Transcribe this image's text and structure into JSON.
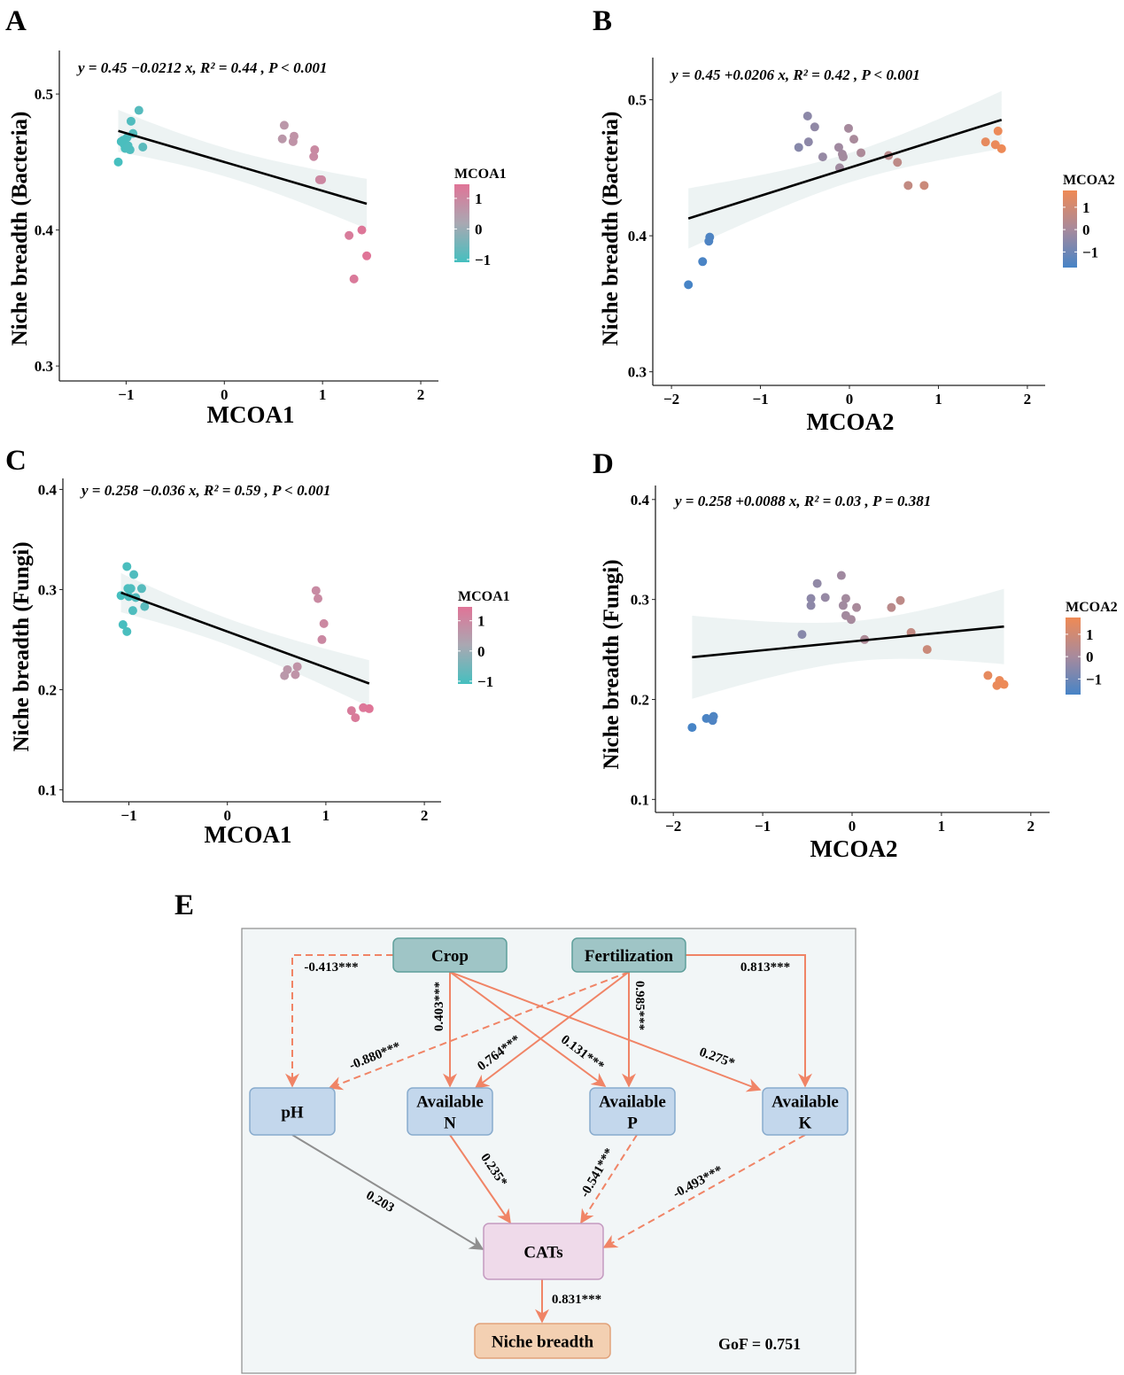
{
  "panel_letters": [
    "A",
    "B",
    "C",
    "D",
    "E"
  ],
  "chart_data": [
    {
      "type": "scatter",
      "equation": "y = 0.45 −0.0212  x, R² = 0.44 , P < 0.001",
      "intercept": 0.45,
      "slope": -0.0212,
      "xlabel": "MCOA1",
      "ylabel": "Niche breadth (Bacteria)",
      "xlim": [
        -1.68,
        2.18
      ],
      "ylim": [
        0.289,
        0.532
      ],
      "xticks": [
        -1,
        0,
        1,
        2
      ],
      "xtick_labels": [
        "−1",
        "0",
        "1",
        "2"
      ],
      "yticks": [
        0.3,
        0.4,
        0.5
      ],
      "ytick_labels": [
        "0.3",
        "0.4",
        "0.5"
      ],
      "legend": {
        "title": "MCOA1",
        "ticks": [
          "1",
          "0",
          "−1"
        ],
        "tick_values": [
          1,
          0,
          -1
        ],
        "range": [
          -1.09,
          1.46
        ],
        "placement": "right"
      },
      "colors": {
        "low": "#45bfbf",
        "mid": "#a9a8b2",
        "high": "#e07497"
      },
      "points": [
        [
          -0.87,
          0.488
        ],
        [
          -0.95,
          0.48
        ],
        [
          -0.93,
          0.471
        ],
        [
          -1.05,
          0.465
        ],
        [
          -0.99,
          0.468
        ],
        [
          -1.01,
          0.46
        ],
        [
          -0.96,
          0.459
        ],
        [
          -0.83,
          0.461
        ],
        [
          -1.08,
          0.45
        ],
        [
          -1.02,
          0.463
        ],
        [
          -0.98,
          0.462
        ],
        [
          -1.03,
          0.466
        ],
        [
          0.61,
          0.477
        ],
        [
          0.59,
          0.467
        ],
        [
          0.71,
          0.469
        ],
        [
          0.7,
          0.465
        ],
        [
          0.92,
          0.459
        ],
        [
          0.91,
          0.454
        ],
        [
          0.97,
          0.437
        ],
        [
          0.99,
          0.437
        ],
        [
          1.27,
          0.396
        ],
        [
          1.4,
          0.4
        ],
        [
          1.45,
          0.381
        ],
        [
          1.32,
          0.364
        ]
      ]
    },
    {
      "type": "scatter",
      "equation": "y = 0.45 +0.0206  x, R² = 0.42 , P < 0.001",
      "intercept": 0.45,
      "slope": 0.0206,
      "xlabel": "MCOA2",
      "ylabel": "Niche breadth (Bacteria)",
      "xlim": [
        -2.21,
        2.2
      ],
      "ylim": [
        0.29,
        0.531
      ],
      "xticks": [
        -2,
        -1,
        0,
        1,
        2
      ],
      "xtick_labels": [
        "−2",
        "−1",
        "0",
        "1",
        "2"
      ],
      "yticks": [
        0.3,
        0.4,
        0.5
      ],
      "ytick_labels": [
        "0.3",
        "0.4",
        "0.5"
      ],
      "legend": {
        "title": "MCOA2",
        "ticks": [
          "1",
          "0",
          "−1"
        ],
        "tick_values": [
          1,
          0,
          -1
        ],
        "range": [
          -1.7,
          1.75
        ],
        "placement": "right"
      },
      "colors": {
        "low": "#4784c6",
        "mid": "#a88a9c",
        "high": "#ef8a55"
      },
      "points": [
        [
          -1.81,
          0.364
        ],
        [
          -1.65,
          0.381
        ],
        [
          -1.58,
          0.396
        ],
        [
          -1.57,
          0.399
        ],
        [
          -0.47,
          0.488
        ],
        [
          -0.39,
          0.48
        ],
        [
          -0.46,
          0.469
        ],
        [
          -0.57,
          0.465
        ],
        [
          -0.3,
          0.458
        ],
        [
          -0.01,
          0.479
        ],
        [
          0.05,
          0.471
        ],
        [
          -0.08,
          0.46
        ],
        [
          -0.07,
          0.458
        ],
        [
          -0.12,
          0.465
        ],
        [
          -0.11,
          0.45
        ],
        [
          0.13,
          0.461
        ],
        [
          0.44,
          0.459
        ],
        [
          0.54,
          0.454
        ],
        [
          0.66,
          0.437
        ],
        [
          0.84,
          0.437
        ],
        [
          1.53,
          0.469
        ],
        [
          1.64,
          0.467
        ],
        [
          1.67,
          0.477
        ],
        [
          1.71,
          0.464
        ]
      ]
    },
    {
      "type": "scatter",
      "equation": "y = 0.258  −0.036  x, R² = 0.59 , P < 0.001",
      "intercept": 0.258,
      "slope": -0.036,
      "xlabel": "MCOA1",
      "ylabel": "Niche breadth (Fungi)",
      "xlim": [
        -1.67,
        2.17
      ],
      "ylim": [
        0.088,
        0.411
      ],
      "xticks": [
        -1,
        0,
        1,
        2
      ],
      "xtick_labels": [
        "−1",
        "0",
        "1",
        "2"
      ],
      "yticks": [
        0.1,
        0.2,
        0.3,
        0.4
      ],
      "ytick_labels": [
        "0.1",
        "0.2",
        "0.3",
        "0.4"
      ],
      "legend": {
        "title": "MCOA1",
        "ticks": [
          "1",
          "0",
          "−1"
        ],
        "tick_values": [
          1,
          0,
          -1
        ],
        "range": [
          -1.09,
          1.46
        ],
        "placement": "right"
      },
      "colors": {
        "low": "#45bfbf",
        "mid": "#a9a8b2",
        "high": "#e07497"
      },
      "points": [
        [
          -1.02,
          0.323
        ],
        [
          -0.95,
          0.315
        ],
        [
          -1.01,
          0.301
        ],
        [
          -0.98,
          0.301
        ],
        [
          -0.87,
          0.301
        ],
        [
          -1.08,
          0.294
        ],
        [
          -1.0,
          0.293
        ],
        [
          -0.93,
          0.292
        ],
        [
          -0.84,
          0.283
        ],
        [
          -0.96,
          0.279
        ],
        [
          -1.06,
          0.265
        ],
        [
          -1.02,
          0.258
        ],
        [
          0.9,
          0.299
        ],
        [
          0.92,
          0.291
        ],
        [
          0.98,
          0.266
        ],
        [
          0.96,
          0.25
        ],
        [
          0.61,
          0.22
        ],
        [
          0.71,
          0.223
        ],
        [
          0.58,
          0.214
        ],
        [
          0.69,
          0.215
        ],
        [
          1.26,
          0.179
        ],
        [
          1.3,
          0.172
        ],
        [
          1.38,
          0.182
        ],
        [
          1.44,
          0.181
        ]
      ]
    },
    {
      "type": "scatter",
      "equation": "y = 0.258  +0.0088  x, R² = 0.03 , P = 0.381",
      "intercept": 0.258,
      "slope": 0.0088,
      "xlabel": "MCOA2",
      "ylabel": "Niche breadth (Fungi)",
      "xlim": [
        -2.2,
        2.21
      ],
      "ylim": [
        0.087,
        0.414
      ],
      "xticks": [
        -2,
        -1,
        0,
        1,
        2
      ],
      "xtick_labels": [
        "−2",
        "−1",
        "0",
        "1",
        "2"
      ],
      "yticks": [
        0.1,
        0.2,
        0.3,
        0.4
      ],
      "ytick_labels": [
        "0.1",
        "0.2",
        "0.3",
        "0.4"
      ],
      "legend": {
        "title": "MCOA2",
        "ticks": [
          "1",
          "0",
          "−1"
        ],
        "tick_values": [
          1,
          0,
          -1
        ],
        "range": [
          -1.7,
          1.75
        ],
        "placement": "right"
      },
      "colors": {
        "low": "#4784c6",
        "mid": "#a88a9c",
        "high": "#ef8a55"
      },
      "points": [
        [
          -1.79,
          0.172
        ],
        [
          -1.63,
          0.181
        ],
        [
          -1.55,
          0.183
        ],
        [
          -1.56,
          0.179
        ],
        [
          -0.56,
          0.265
        ],
        [
          -0.46,
          0.294
        ],
        [
          -0.46,
          0.301
        ],
        [
          -0.39,
          0.316
        ],
        [
          -0.3,
          0.302
        ],
        [
          -0.12,
          0.324
        ],
        [
          -0.07,
          0.301
        ],
        [
          -0.1,
          0.294
        ],
        [
          -0.07,
          0.284
        ],
        [
          -0.01,
          0.28
        ],
        [
          0.05,
          0.292
        ],
        [
          0.14,
          0.26
        ],
        [
          0.44,
          0.292
        ],
        [
          0.54,
          0.299
        ],
        [
          0.66,
          0.267
        ],
        [
          0.84,
          0.25
        ],
        [
          1.52,
          0.224
        ],
        [
          1.65,
          0.219
        ],
        [
          1.67,
          0.216
        ],
        [
          1.7,
          0.215
        ],
        [
          1.62,
          0.214
        ]
      ]
    }
  ],
  "diagram": {
    "nodes": [
      {
        "id": "crop",
        "label": [
          "Crop"
        ],
        "kind": "driver"
      },
      {
        "id": "fert",
        "label": [
          "Fertilization"
        ],
        "kind": "driver"
      },
      {
        "id": "ph",
        "label": [
          "pH"
        ],
        "kind": "soil"
      },
      {
        "id": "avn",
        "label": [
          "Available",
          "N"
        ],
        "kind": "soil"
      },
      {
        "id": "avp",
        "label": [
          "Available",
          "P"
        ],
        "kind": "soil"
      },
      {
        "id": "avk",
        "label": [
          "Available",
          "K"
        ],
        "kind": "soil"
      },
      {
        "id": "cats",
        "label": [
          "CATs"
        ],
        "kind": "cats"
      },
      {
        "id": "niche",
        "label": [
          "Niche breadth"
        ],
        "kind": "outcome"
      }
    ],
    "edges": [
      {
        "from": "crop",
        "to": "ph",
        "coef": "-0.413***",
        "sign": "negative"
      },
      {
        "from": "crop",
        "to": "avn",
        "coef": "0.403***",
        "sign": "positive"
      },
      {
        "from": "crop",
        "to": "avp",
        "coef": "0.131***",
        "sign": "positive"
      },
      {
        "from": "crop",
        "to": "avk",
        "coef": "0.275*",
        "sign": "positive"
      },
      {
        "from": "fert",
        "to": "ph",
        "coef": "-0.880***",
        "sign": "negative"
      },
      {
        "from": "fert",
        "to": "avn",
        "coef": "0.764***",
        "sign": "positive"
      },
      {
        "from": "fert",
        "to": "avp",
        "coef": "0.985***",
        "sign": "positive"
      },
      {
        "from": "fert",
        "to": "avk",
        "coef": "0.813***",
        "sign": "positive"
      },
      {
        "from": "ph",
        "to": "cats",
        "coef": "0.203",
        "sign": "nonsignificant"
      },
      {
        "from": "avn",
        "to": "cats",
        "coef": "0.235*",
        "sign": "positive"
      },
      {
        "from": "avp",
        "to": "cats",
        "coef": "-0.541***",
        "sign": "negative"
      },
      {
        "from": "avk",
        "to": "cats",
        "coef": "-0.493***",
        "sign": "negative"
      },
      {
        "from": "cats",
        "to": "niche",
        "coef": "0.831***",
        "sign": "positive"
      }
    ],
    "gof": "GoF = 0.751",
    "colors": {
      "background": "#f2f6f7",
      "frame": "#8c8c8c",
      "driver_fill": "#9fc5c6",
      "driver_stroke": "#5e9f9b",
      "soil_fill": "#c3d7ec",
      "soil_stroke": "#88abcd",
      "cats_fill": "#efdaea",
      "cats_stroke": "#c49ac0",
      "outcome_fill": "#f3d0b2",
      "outcome_stroke": "#e1a27a",
      "path": "#f08466",
      "nonsignificant": "#8f8f8f"
    }
  }
}
